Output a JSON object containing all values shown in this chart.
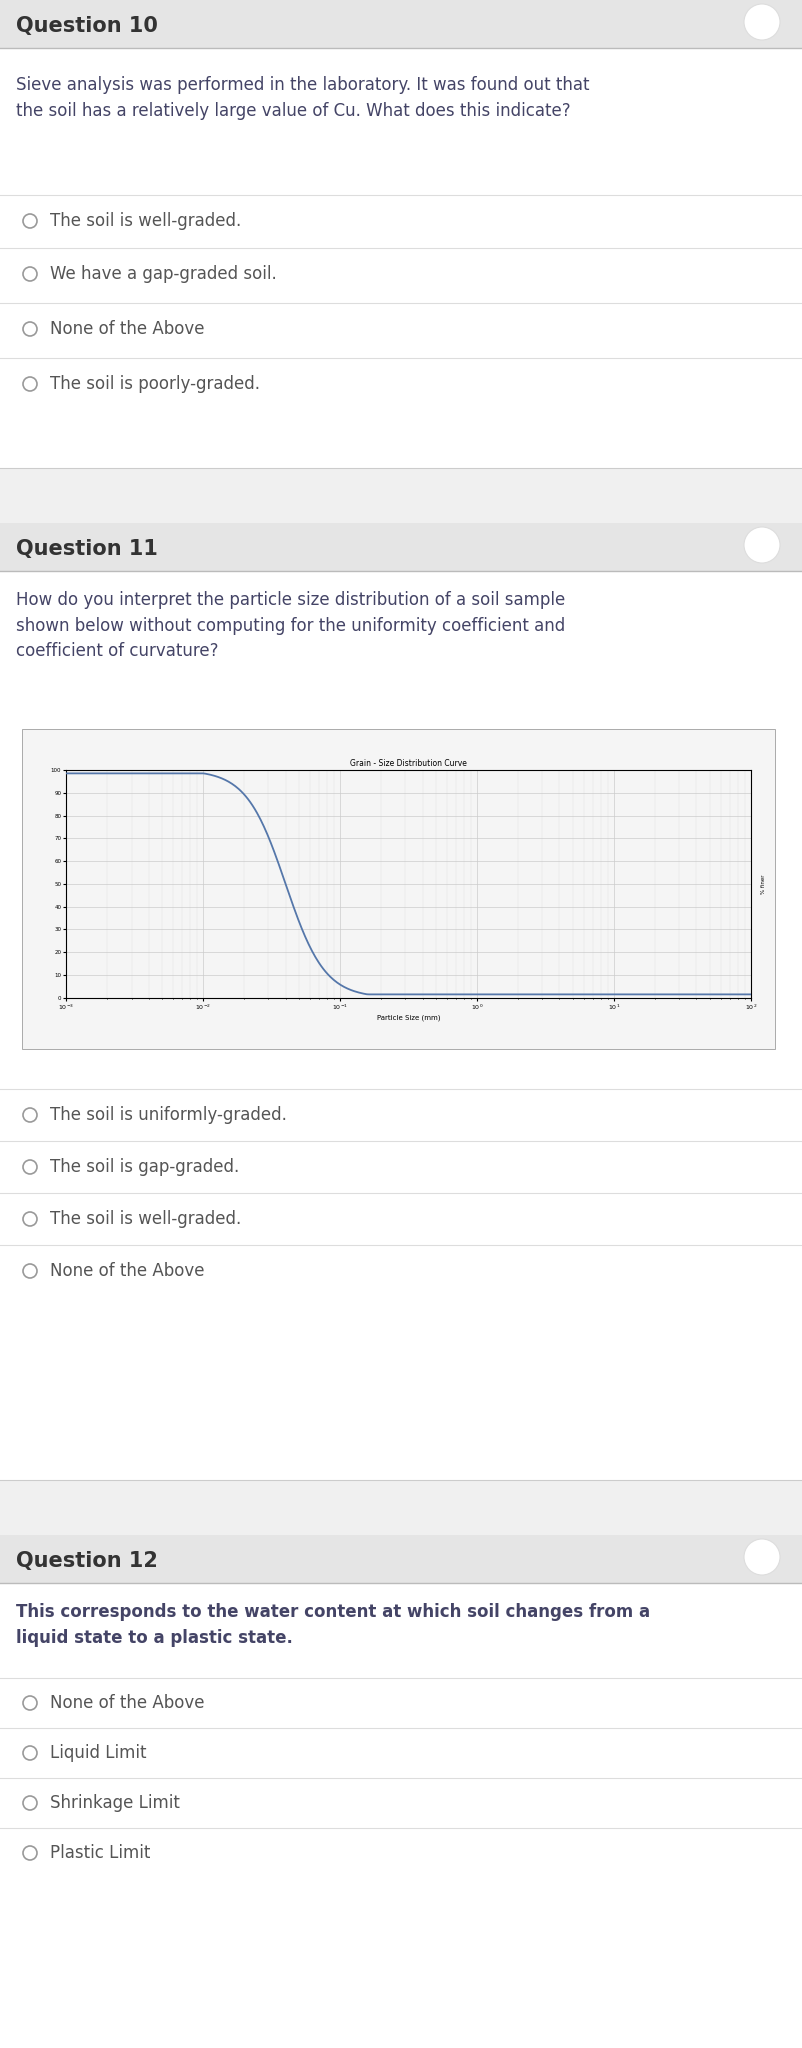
{
  "bg_color": "#f0f0f0",
  "white": "#ffffff",
  "header_bg": "#e5e5e5",
  "option_text_color": "#555555",
  "question_header_color": "#333333",
  "question_body_color": "#444466",
  "q10_title": "Question 10",
  "q10_body": "Sieve analysis was performed in the laboratory. It was found out that\nthe soil has a relatively large value of Cu. What does this indicate?",
  "q10_options": [
    "The soil is well-graded.",
    "We have a gap-graded soil.",
    "None of the Above",
    "The soil is poorly-graded."
  ],
  "q11_title": "Question 11",
  "q11_body": "How do you interpret the particle size distribution of a soil sample\nshown below without computing for the uniformity coefficient and\ncoefficient of curvature?",
  "q11_chart_title": "Grain - Size Distribution Curve",
  "q11_xlabel": "Particle Size (mm)",
  "q11_options": [
    "The soil is uniformly-graded.",
    "The soil is gap-graded.",
    "The soil is well-graded.",
    "None of the Above"
  ],
  "q12_title": "Question 12",
  "q12_body": "This corresponds to the water content at which soil changes from a\nliquid state to a plastic state.",
  "q12_options": [
    "None of the Above",
    "Liquid Limit",
    "Shrinkage Limit",
    "Plastic Limit"
  ]
}
